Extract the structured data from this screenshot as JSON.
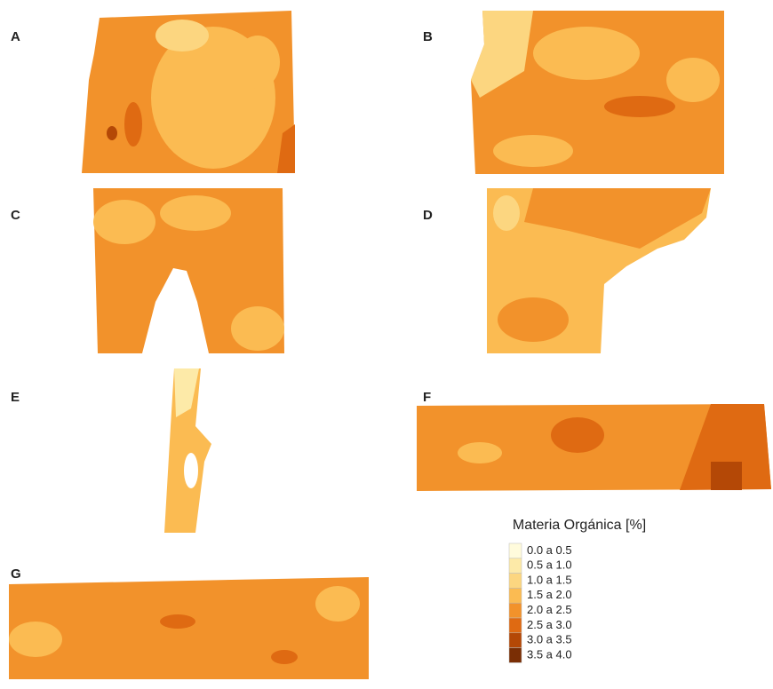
{
  "panels": [
    {
      "label": "A"
    },
    {
      "label": "B"
    },
    {
      "label": "C"
    },
    {
      "label": "D"
    },
    {
      "label": "E"
    },
    {
      "label": "F"
    },
    {
      "label": "G"
    }
  ],
  "legend": {
    "title": "Materia Orgánica [%]",
    "items": [
      {
        "label": "0.0 a 0.5",
        "color": "#fffbdc"
      },
      {
        "label": "0.5 a 1.0",
        "color": "#fdeaa8"
      },
      {
        "label": "1.0 a 1.5",
        "color": "#fcd680"
      },
      {
        "label": "1.5 a 2.0",
        "color": "#fbbb52"
      },
      {
        "label": "2.0 a 2.5",
        "color": "#f2922b"
      },
      {
        "label": "2.5 a 3.0",
        "color": "#df6a12"
      },
      {
        "label": "3.0 a 3.5",
        "color": "#b44806"
      },
      {
        "label": "3.5 a 4.0",
        "color": "#7a2e05"
      }
    ]
  }
}
